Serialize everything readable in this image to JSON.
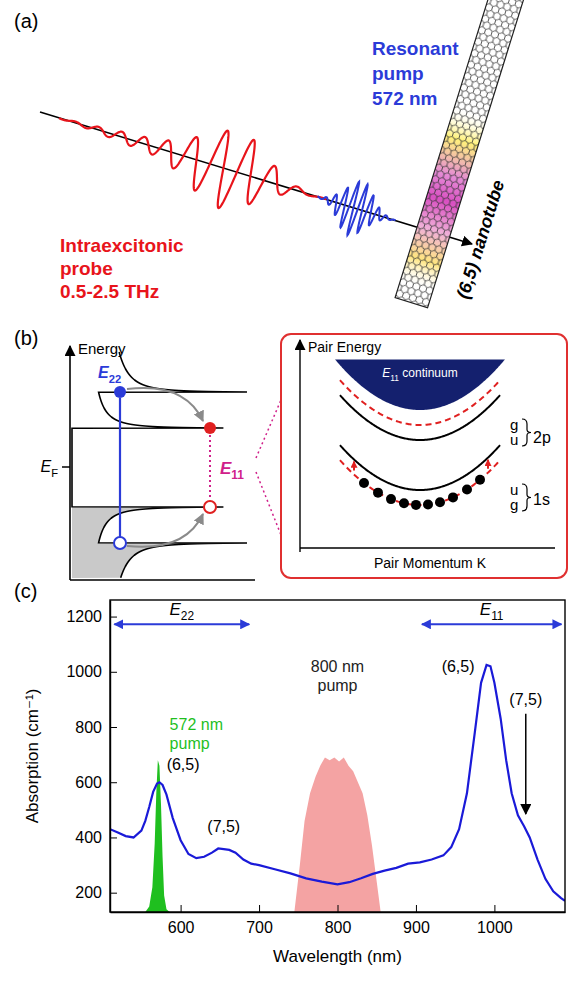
{
  "panel_labels": [
    "(a)",
    "(b)",
    "(c)"
  ],
  "panel_a": {
    "probe_label": [
      "Intraexcitonic",
      "probe",
      "0.5-2.5 THz"
    ],
    "pump_label": [
      "Resonant",
      "pump",
      "572 nm"
    ],
    "nanotube_label": "(6,5) nanotube"
  },
  "panel_b": {
    "energy_axis": "Energy",
    "e22": {
      "text": "E",
      "sub": "22"
    },
    "fermi": {
      "text": "E",
      "sub": "F"
    },
    "e11": {
      "text": "E",
      "sub": "11"
    },
    "pair_energy_axis": "Pair Energy",
    "momentum_axis": "Pair Momentum K",
    "continuum": {
      "text": "E",
      "sub": "11",
      "tail": " continuum"
    },
    "bands": [
      {
        "state": "2p",
        "levels": [
          "g",
          "u"
        ]
      },
      {
        "state": "1s",
        "levels": [
          "u",
          "g"
        ]
      }
    ]
  },
  "chart_data": {
    "type": "line",
    "xlabel": "Wavelength (nm)",
    "ylabel": "Absorption (cm⁻¹)",
    "xlim": [
      510,
      1090
    ],
    "ylim": [
      130,
      1260
    ],
    "xticks": [
      600,
      700,
      800,
      900,
      1000
    ],
    "yticks": [
      200,
      400,
      600,
      800,
      1000,
      1200
    ],
    "series": [
      {
        "type": "line",
        "color": "#1a1ad8",
        "x": [
          510,
          520,
          530,
          540,
          550,
          555,
          560,
          565,
          570,
          573,
          577,
          582,
          590,
          600,
          610,
          620,
          630,
          640,
          648,
          655,
          662,
          670,
          680,
          690,
          700,
          720,
          740,
          760,
          780,
          800,
          815,
          830,
          845,
          860,
          875,
          890,
          905,
          920,
          935,
          945,
          955,
          965,
          975,
          983,
          990,
          995,
          1000,
          1008,
          1015,
          1022,
          1030,
          1038,
          1045,
          1055,
          1065,
          1075,
          1085,
          1090
        ],
        "values": [
          430,
          418,
          405,
          400,
          425,
          460,
          510,
          565,
          595,
          600,
          590,
          555,
          470,
          390,
          340,
          325,
          330,
          345,
          360,
          358,
          355,
          345,
          320,
          305,
          300,
          285,
          270,
          252,
          240,
          230,
          238,
          252,
          268,
          280,
          290,
          305,
          310,
          320,
          335,
          365,
          430,
          560,
          780,
          960,
          1025,
          1020,
          960,
          830,
          680,
          560,
          480,
          440,
          400,
          320,
          250,
          205,
          180,
          170
        ]
      },
      {
        "type": "area",
        "name": "572 nm pump",
        "color": "#1fbf1f",
        "x": [
          555,
          560,
          564,
          567,
          569,
          571,
          573,
          575,
          577,
          579,
          582,
          586
        ],
        "values": [
          130,
          150,
          220,
          380,
          560,
          680,
          660,
          520,
          330,
          190,
          140,
          130
        ]
      },
      {
        "type": "area",
        "name": "800 nm pump",
        "color": "#f4a3a3",
        "x": [
          745,
          752,
          758,
          765,
          772,
          778,
          784,
          790,
          796,
          802,
          808,
          814,
          820,
          826,
          832,
          838,
          844,
          850,
          855
        ],
        "values": [
          130,
          300,
          460,
          560,
          620,
          660,
          690,
          680,
          690,
          675,
          690,
          660,
          640,
          600,
          560,
          480,
          370,
          240,
          130
        ]
      }
    ],
    "bands": [
      {
        "label": {
          "text": "E",
          "sub": "22"
        },
        "range": [
          513,
          690
        ]
      },
      {
        "label": {
          "text": "E",
          "sub": "11"
        },
        "range": [
          905,
          1088
        ]
      }
    ],
    "peak_labels": [
      {
        "text": "(6,5)",
        "x": 572
      },
      {
        "text": "(7,5)",
        "x": 655
      },
      {
        "text": "(6,5)",
        "x": 990
      },
      {
        "text": "(7,5)",
        "x": 1040
      }
    ]
  }
}
